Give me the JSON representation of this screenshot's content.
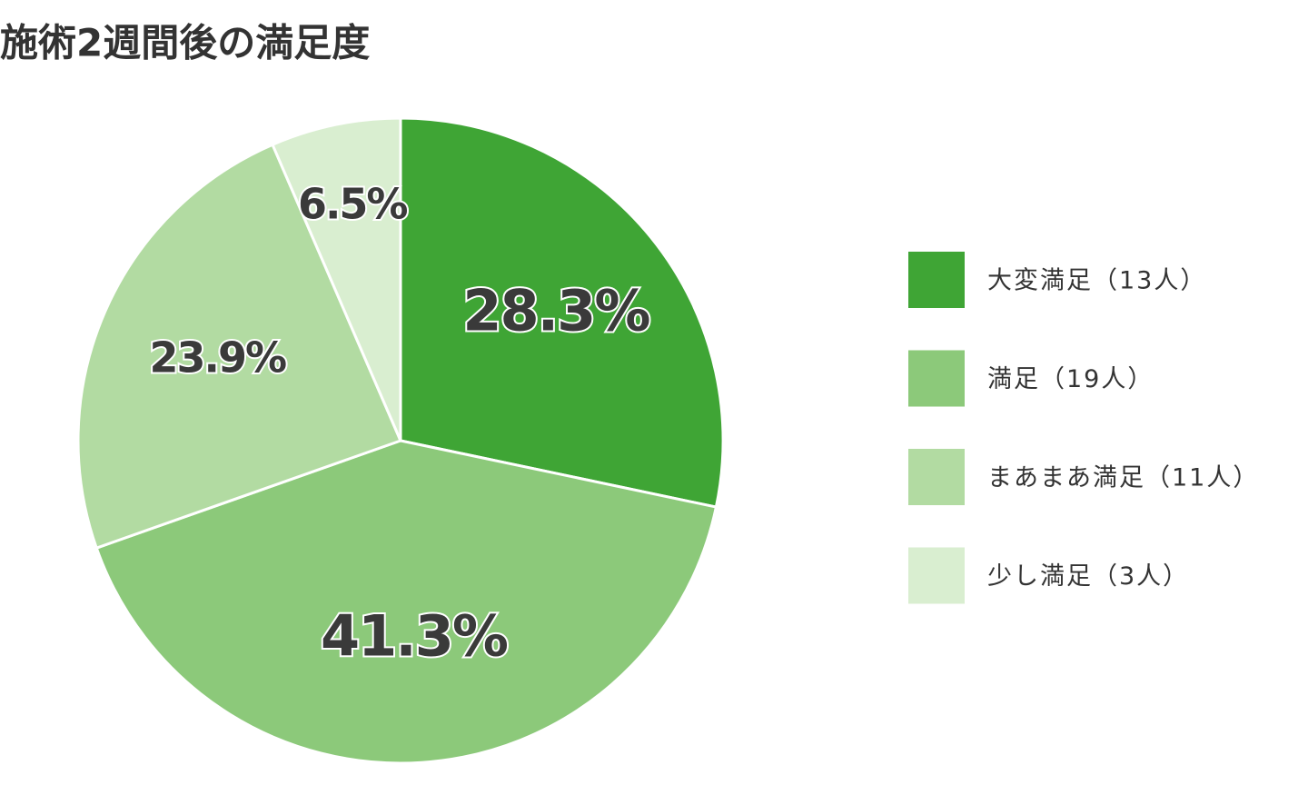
{
  "chart_data": {
    "type": "pie",
    "title": "施術2週間後の満足度",
    "categories": [
      "大変満足（13人）",
      "満足（19人）",
      "まあまあ満足（11人）",
      "少し満足（3人）"
    ],
    "values": [
      28.3,
      41.3,
      23.9,
      6.5
    ],
    "value_labels": [
      "28.3%",
      "41.3%",
      "23.9%",
      "6.5%"
    ],
    "colors": [
      "#3fa535",
      "#8cc97a",
      "#b2dba2",
      "#d9eed0"
    ],
    "legend": "right"
  }
}
